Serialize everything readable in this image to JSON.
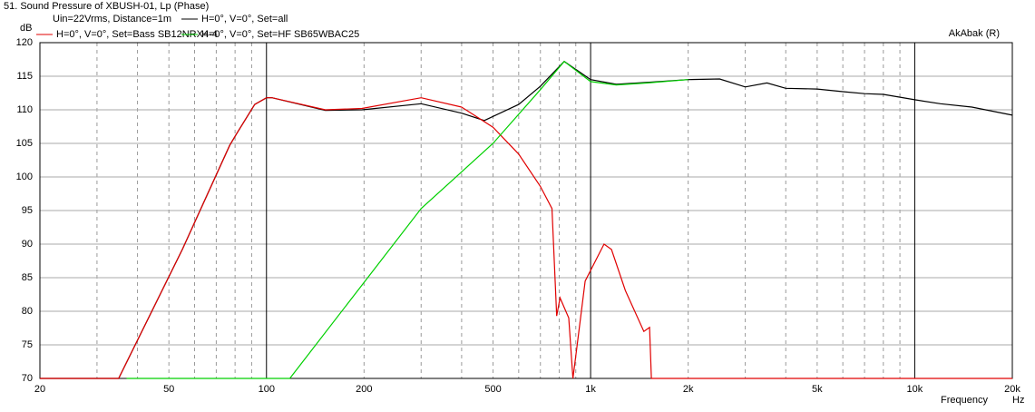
{
  "chart_data": {
    "type": "line",
    "title": "51. Sound Pressure of XBUSH-01, Lp (Phase)",
    "subtitle": "Uin=22Vrms, Distance=1m",
    "ylabel": "dB",
    "xlabel": "Frequency",
    "xunit": "Hz",
    "annotation": "AkAbak (R)",
    "xscale": "log",
    "grid": true,
    "xlim": [
      20,
      20000
    ],
    "ylim": [
      70,
      120
    ],
    "xticks": [
      20,
      50,
      100,
      200,
      500,
      {
        "value": 1000,
        "label": "1k"
      },
      {
        "value": 2000,
        "label": "2k"
      },
      {
        "value": 5000,
        "label": "5k"
      },
      {
        "value": 10000,
        "label": "10k"
      },
      {
        "value": 20000,
        "label": "20k"
      }
    ],
    "yticks": [
      70,
      75,
      80,
      85,
      90,
      95,
      100,
      105,
      110,
      115,
      120
    ],
    "series": [
      {
        "name": "H=0°, V=0°, Set=all",
        "color": "#000000",
        "x": [
          20,
          35,
          55,
          77,
          81,
          92,
          100,
          104,
          152,
          197,
          300,
          400,
          470,
          600,
          700,
          829,
          1000,
          1200,
          1500,
          2000,
          2500,
          3000,
          3500,
          4000,
          5000,
          6000,
          7000,
          8000,
          10000,
          12000,
          15000,
          20000
        ],
        "values": [
          70,
          70,
          89.2,
          104.7,
          106.5,
          110.8,
          111.8,
          111.8,
          109.9,
          110,
          110.9,
          109.5,
          108.4,
          110.8,
          113.5,
          117.2,
          114.5,
          113.8,
          114.1,
          114.5,
          114.6,
          113.4,
          114,
          113.2,
          113.1,
          112.7,
          112.4,
          112.3,
          111.5,
          110.9,
          110.4,
          109.2
        ]
      },
      {
        "name": "H=0°, V=0°, Set=Bass SB12NRX4-4",
        "color": "#e00000",
        "x": [
          20,
          35,
          55,
          77,
          81,
          92,
          100,
          104,
          152,
          197,
          300,
          400,
          500,
          600,
          700,
          760,
          786,
          805,
          856,
          882,
          909,
          962,
          1100,
          1160,
          1280,
          1460,
          1520,
          1540,
          20000
        ],
        "values": [
          70,
          70,
          89.2,
          104.7,
          106.5,
          110.8,
          111.8,
          111.8,
          110,
          110.2,
          111.8,
          110.4,
          107.4,
          103.4,
          98.6,
          95.3,
          79.3,
          82,
          79,
          70,
          75,
          84.5,
          90,
          89.2,
          83.1,
          77,
          77.6,
          70,
          70
        ]
      },
      {
        "name": "H=0°, V=0°, Set=HF SB65WBAC25",
        "color": "#00d000",
        "x": [
          37,
          118,
          300,
          500,
          700,
          829,
          1000,
          1200,
          1500,
          2000
        ],
        "values": [
          70,
          70,
          95.3,
          105,
          113,
          117.2,
          114.2,
          113.7,
          114,
          114.5
        ]
      }
    ]
  }
}
